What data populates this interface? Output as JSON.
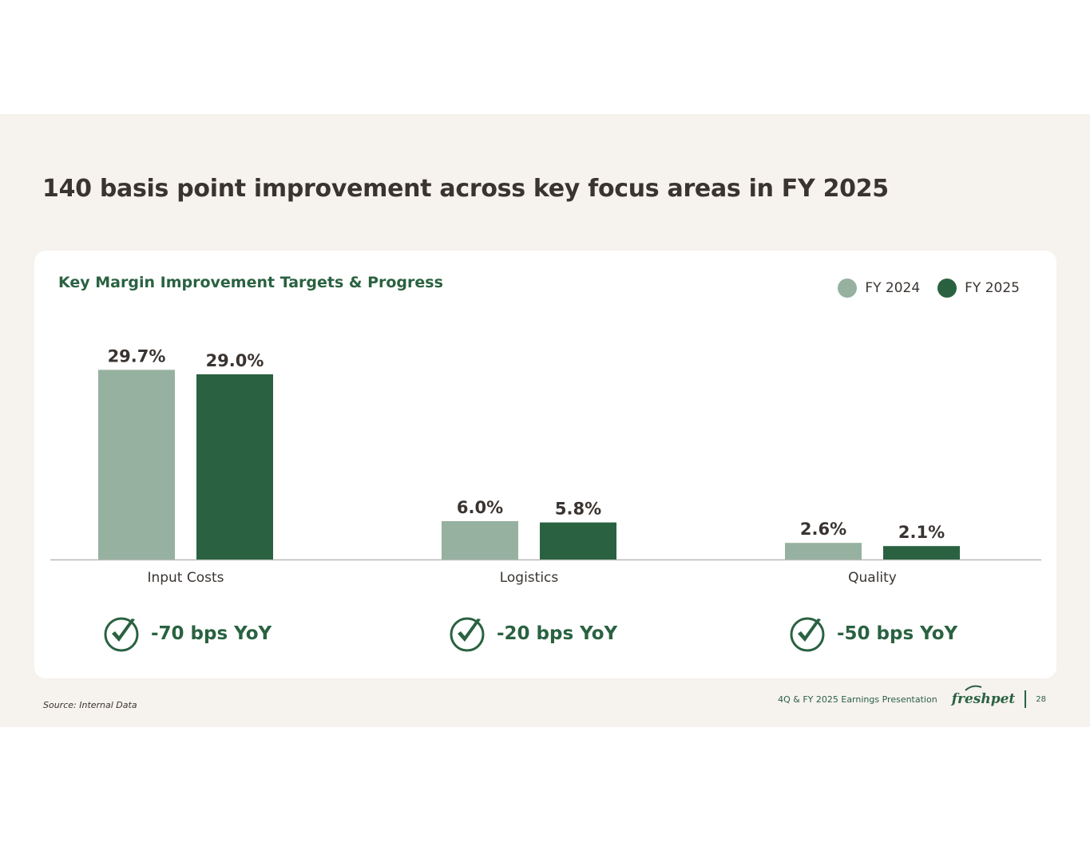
{
  "headline": "140 basis point improvement across key focus areas in FY 2025",
  "chart_data": {
    "type": "bar",
    "title": "Key Margin Improvement Targets & Progress",
    "categories": [
      "Input Costs",
      "Logistics",
      "Quality"
    ],
    "series": [
      {
        "name": "FY 2024",
        "values": [
          29.7,
          6.0,
          2.6
        ],
        "labels": [
          "29.7%",
          "6.0%",
          "2.6%"
        ],
        "color": "#97b1a0"
      },
      {
        "name": "FY 2025",
        "values": [
          29.0,
          5.8,
          2.1
        ],
        "labels": [
          "29.0%",
          "5.8%",
          "2.1%"
        ],
        "color": "#2a6241"
      }
    ],
    "ylim": [
      0,
      30
    ],
    "xlabel": "",
    "ylabel": "",
    "grid": false,
    "legend_position": "top-right"
  },
  "outcomes": [
    {
      "label": "-70 bps YoY",
      "icon": "check-circle-icon"
    },
    {
      "label": "-20 bps YoY",
      "icon": "check-circle-icon"
    },
    {
      "label": "-50 bps YoY",
      "icon": "check-circle-icon"
    }
  ],
  "footer": {
    "source": "Source: Internal Data",
    "presentation_title": "4Q & FY 2025 Earnings Presentation",
    "logo_text": "freshpet",
    "page_number": "28"
  },
  "colors": {
    "accent": "#2a6241",
    "light_bar": "#97b1a0",
    "background": "#f6f2ee",
    "text": "#3a3431"
  }
}
